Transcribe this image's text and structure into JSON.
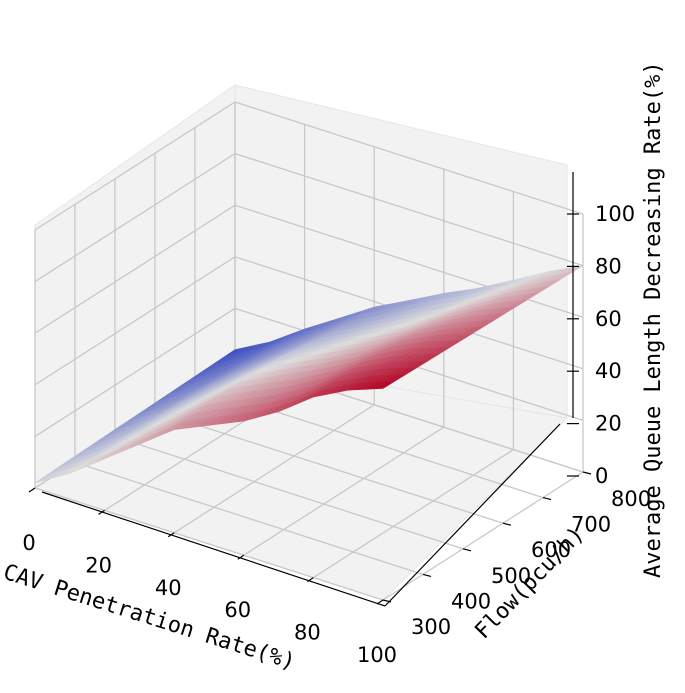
{
  "chart_data": {
    "type": "surface",
    "title": "",
    "xlabel": "CAV Penetration Rate(%)",
    "ylabel": "Flow(pcu/h)",
    "zlabel": "Average Queue Length Decreasing Rate(%)",
    "x_ticks": [
      "0",
      "20",
      "40",
      "60",
      "80",
      "100"
    ],
    "y_ticks": [
      "300",
      "400",
      "500",
      "600",
      "700",
      "800"
    ],
    "z_ticks": [
      "0",
      "20",
      "40",
      "60",
      "80",
      "100"
    ],
    "xlim": [
      0,
      100
    ],
    "ylim": [
      300,
      800
    ],
    "zlim": [
      0,
      100
    ],
    "grid": true,
    "colormap": "coolwarm",
    "colors": {
      "low": "#3b4cc0",
      "mid": "#dddddd",
      "high": "#b40426"
    },
    "surface_profile": {
      "x": [
        0,
        10,
        20,
        30,
        40,
        50,
        60,
        70,
        80,
        90,
        100
      ],
      "z_at_low_flow": [
        2,
        10,
        20,
        30,
        40,
        46,
        52,
        60,
        70,
        77,
        82
      ],
      "z_at_high_flow": [
        4,
        12,
        22,
        31,
        40,
        47,
        54,
        60,
        67,
        74,
        80
      ]
    }
  }
}
